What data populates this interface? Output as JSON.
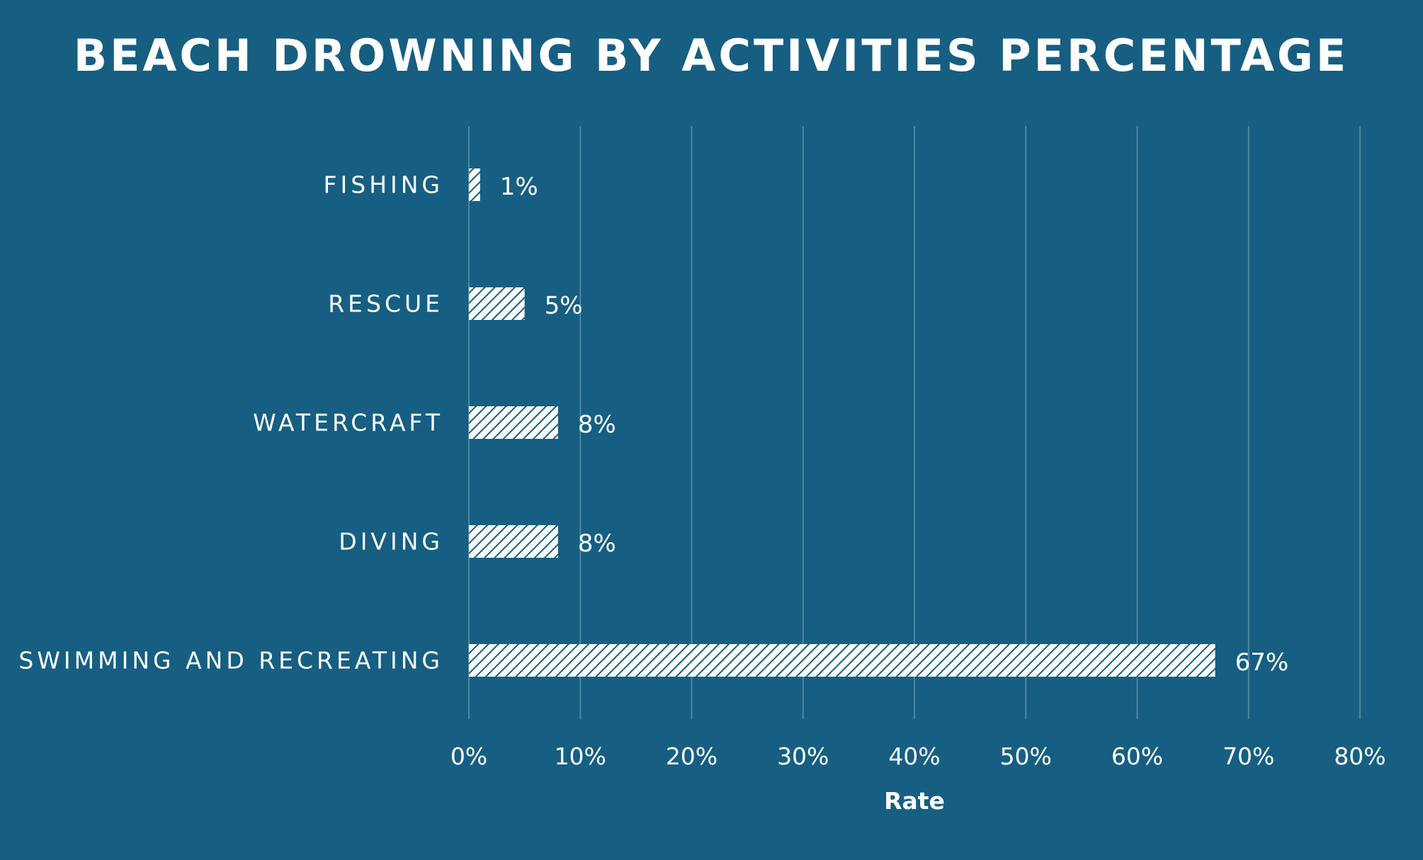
{
  "chart_data": {
    "type": "bar",
    "orientation": "horizontal",
    "title": "BEACH DROWNING BY ACTIVITIES PERCENTAGE",
    "xlabel": "Rate",
    "ylabel": "",
    "categories": [
      "FISHING",
      "RESCUE",
      "WATERCRAFT",
      "DIVING",
      "SWIMMING AND RECREATING"
    ],
    "values": [
      1,
      5,
      8,
      8,
      67
    ],
    "data_labels": [
      "1%",
      "5%",
      "8%",
      "8%",
      "67%"
    ],
    "xlim": [
      0,
      80
    ],
    "x_ticks": [
      "0%",
      "10%",
      "20%",
      "30%",
      "40%",
      "50%",
      "60%",
      "70%",
      "80%"
    ],
    "grid": true,
    "legend": "none",
    "colors": {
      "background": "#165f82",
      "bar_pattern": "#ffffff",
      "text": "#ffffff",
      "gridline": "#4f86a2"
    }
  }
}
